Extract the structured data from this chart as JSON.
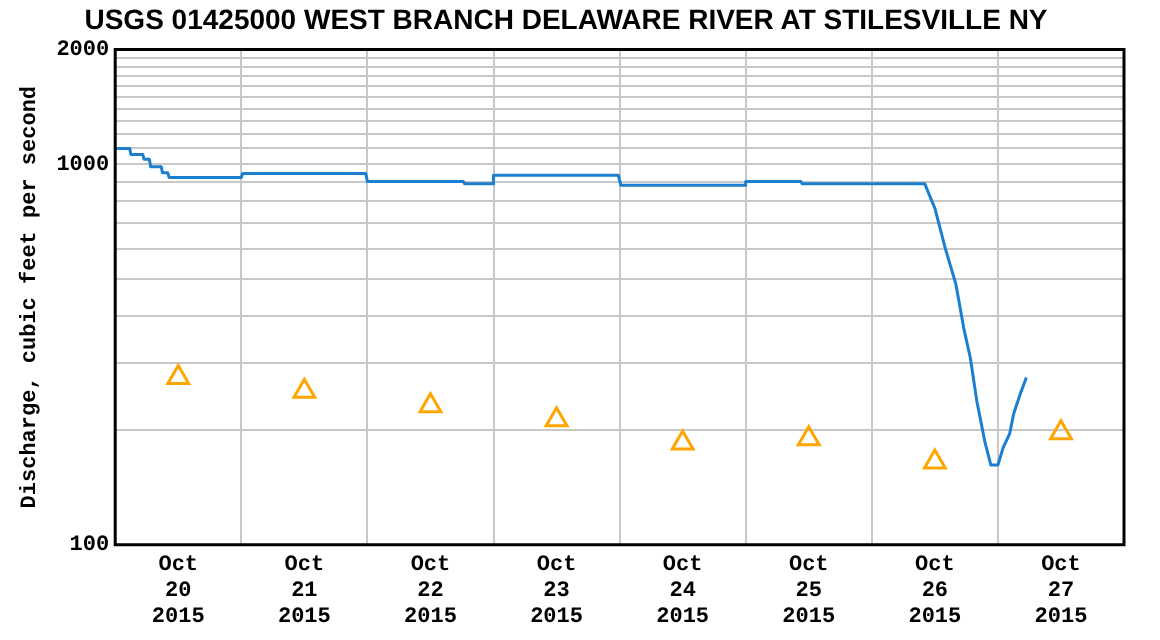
{
  "chart_data": {
    "type": "line",
    "title": "USGS 01425000 WEST BRANCH DELAWARE RIVER AT STILESVILLE NY",
    "ylabel": "Discharge, cubic feet per second",
    "log": "y",
    "grid": true,
    "legend": false,
    "xlim": [
      "2015-10-20T00:00",
      "2015-10-28T00:00"
    ],
    "xticks": [
      {
        "value": "2015-10-20T12:00",
        "label": "Oct\n20\n2015"
      },
      {
        "value": "2015-10-21T00:00",
        "label": null
      },
      {
        "value": "2015-10-21T12:00",
        "label": "Oct\n21\n2015"
      },
      {
        "value": "2015-10-22T00:00",
        "label": null
      },
      {
        "value": "2015-10-22T12:00",
        "label": "Oct\n22\n2015"
      },
      {
        "value": "2015-10-23T00:00",
        "label": null
      },
      {
        "value": "2015-10-23T12:00",
        "label": "Oct\n23\n2015"
      },
      {
        "value": "2015-10-24T00:00",
        "label": null
      },
      {
        "value": "2015-10-24T12:00",
        "label": "Oct\n24\n2015"
      },
      {
        "value": "2015-10-25T00:00",
        "label": null
      },
      {
        "value": "2015-10-25T12:00",
        "label": "Oct\n25\n2015"
      },
      {
        "value": "2015-10-26T00:00",
        "label": null
      },
      {
        "value": "2015-10-26T12:00",
        "label": "Oct\n26\n2015"
      },
      {
        "value": "2015-10-27T00:00",
        "label": null
      },
      {
        "value": "2015-10-27T12:00",
        "label": "Oct\n27\n2015"
      }
    ],
    "ylim": [
      100,
      2000
    ],
    "yticks": [
      100,
      {
        "value": 200,
        "label": null
      },
      {
        "value": 300,
        "label": null
      },
      {
        "value": 400,
        "label": null
      },
      {
        "value": 500,
        "label": null
      },
      {
        "value": 600,
        "label": null
      },
      {
        "value": 700,
        "label": null
      },
      {
        "value": 800,
        "label": null
      },
      {
        "value": 900,
        "label": null
      },
      1000,
      {
        "value": 1100,
        "label": null
      },
      {
        "value": 1200,
        "label": null
      },
      {
        "value": 1300,
        "label": null
      },
      {
        "value": 1400,
        "label": null
      },
      {
        "value": 1500,
        "label": null
      },
      {
        "value": 1600,
        "label": null
      },
      {
        "value": 1700,
        "label": null
      },
      {
        "value": 1800,
        "label": null
      },
      {
        "value": 1900,
        "label": null
      },
      2000
    ],
    "series": [
      {
        "color": "#1a7fd0",
        "marker": "none",
        "x": [
          "2015-10-20T00:15",
          "2015-10-20T02:45",
          "2015-10-20T03:00",
          "2015-10-20T05:15",
          "2015-10-20T05:30",
          "2015-10-20T06:30",
          "2015-10-20T06:45",
          "2015-10-20T08:45",
          "2015-10-20T09:00",
          "2015-10-20T10:00",
          "2015-10-20T10:15",
          "2015-10-21T00:00",
          "2015-10-21T00:15",
          "2015-10-21T23:40",
          "2015-10-22T00:00",
          "2015-10-22T18:15",
          "2015-10-22T18:30",
          "2015-10-22T23:45",
          "2015-10-23T00:00",
          "2015-10-23T23:45",
          "2015-10-24T00:15",
          "2015-10-24T23:45",
          "2015-10-25T00:00",
          "2015-10-25T10:30",
          "2015-10-25T10:45",
          "2015-10-26T10:05",
          "2015-10-26T12:00",
          "2015-10-26T14:00",
          "2015-10-26T16:00",
          "2015-10-26T17:30",
          "2015-10-26T18:45",
          "2015-10-26T20:00",
          "2015-10-26T21:30",
          "2015-10-26T22:40",
          "2015-10-27T00:00",
          "2015-10-27T01:00",
          "2015-10-27T02:15",
          "2015-10-27T03:00",
          "2015-10-27T04:15",
          "2015-10-27T05:25"
        ],
        "values": [
          1100,
          1100,
          1060,
          1060,
          1030,
          1030,
          985,
          985,
          950,
          950,
          923,
          923,
          945,
          945,
          901,
          901,
          888,
          888,
          935,
          935,
          880,
          880,
          900,
          900,
          888,
          888,
          766,
          600,
          484,
          371,
          310,
          238,
          187,
          162,
          162,
          180,
          196,
          221,
          249,
          275
        ]
      },
      {
        "type": "scatter",
        "color": "#ffa500",
        "marker": "triangle",
        "x": [
          "2015-10-20T12:00",
          "2015-10-21T12:00",
          "2015-10-22T12:00",
          "2015-10-23T12:00",
          "2015-10-24T12:00",
          "2015-10-25T12:00",
          "2015-10-26T12:00",
          "2015-10-27T12:00"
        ],
        "values": [
          275,
          253,
          232,
          213,
          185,
          190,
          165,
          197
        ]
      }
    ]
  }
}
